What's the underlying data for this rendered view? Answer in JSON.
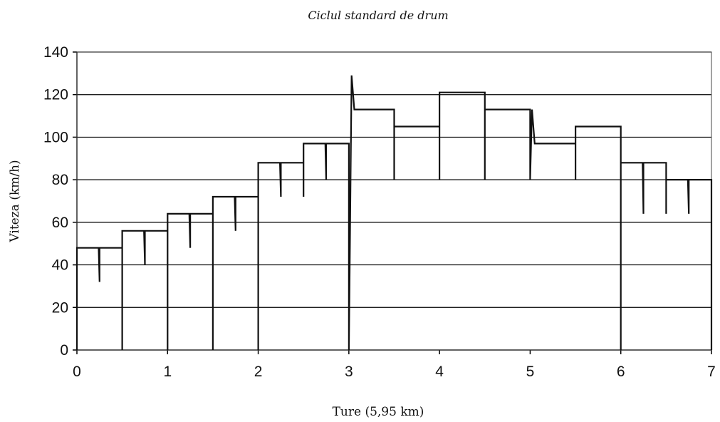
{
  "chart_data": {
    "type": "line",
    "title": "Ciclul standard de drum",
    "xlabel": "Ture (5,95 km)",
    "ylabel": "Viteza (km/h)",
    "xlim": [
      0,
      7
    ],
    "ylim": [
      0,
      140
    ],
    "xticks": [
      0,
      1,
      2,
      3,
      4,
      5,
      6,
      7
    ],
    "yticks": [
      0,
      20,
      40,
      60,
      80,
      100,
      120,
      140
    ],
    "grid": "horizontal",
    "series": [
      {
        "x": [
          0,
          0,
          0.24,
          0.25,
          0.25,
          0.26,
          0.5,
          0.5,
          0.5,
          0.74,
          0.75,
          0.75,
          0.76,
          1,
          1,
          1,
          1.24,
          1.25,
          1.25,
          1.26,
          1.5,
          1.5,
          1.5,
          1.74,
          1.75,
          1.75,
          1.76,
          2,
          2,
          2,
          2.24,
          2.25,
          2.25,
          2.26,
          2.5,
          2.5,
          2.5,
          2.74,
          2.75,
          2.75,
          2.76,
          3,
          3,
          3.03,
          3.06,
          3.5,
          3.5,
          3.5,
          4,
          4,
          4,
          4.5,
          4.5,
          4.5,
          5,
          5,
          5.02,
          5.05,
          5.5,
          5.5,
          5.5,
          6,
          6,
          6,
          6.24,
          6.25,
          6.25,
          6.26,
          6.5,
          6.5,
          6.5,
          6.74,
          6.75,
          6.75,
          6.76,
          7,
          7
        ],
        "y": [
          0,
          48,
          48,
          32,
          48,
          48,
          48,
          0,
          56,
          56,
          40,
          56,
          56,
          56,
          0,
          64,
          64,
          48,
          64,
          64,
          64,
          0,
          72,
          72,
          56,
          72,
          72,
          72,
          0,
          88,
          88,
          72,
          88,
          88,
          88,
          72,
          97,
          97,
          80,
          97,
          97,
          97,
          0,
          129,
          113,
          113,
          80,
          105,
          105,
          80,
          121,
          121,
          80,
          113,
          113,
          80,
          113,
          97,
          97,
          80,
          105,
          105,
          0,
          88,
          88,
          64,
          88,
          88,
          88,
          64,
          80,
          80,
          64,
          80,
          80,
          80,
          0
        ]
      }
    ]
  }
}
